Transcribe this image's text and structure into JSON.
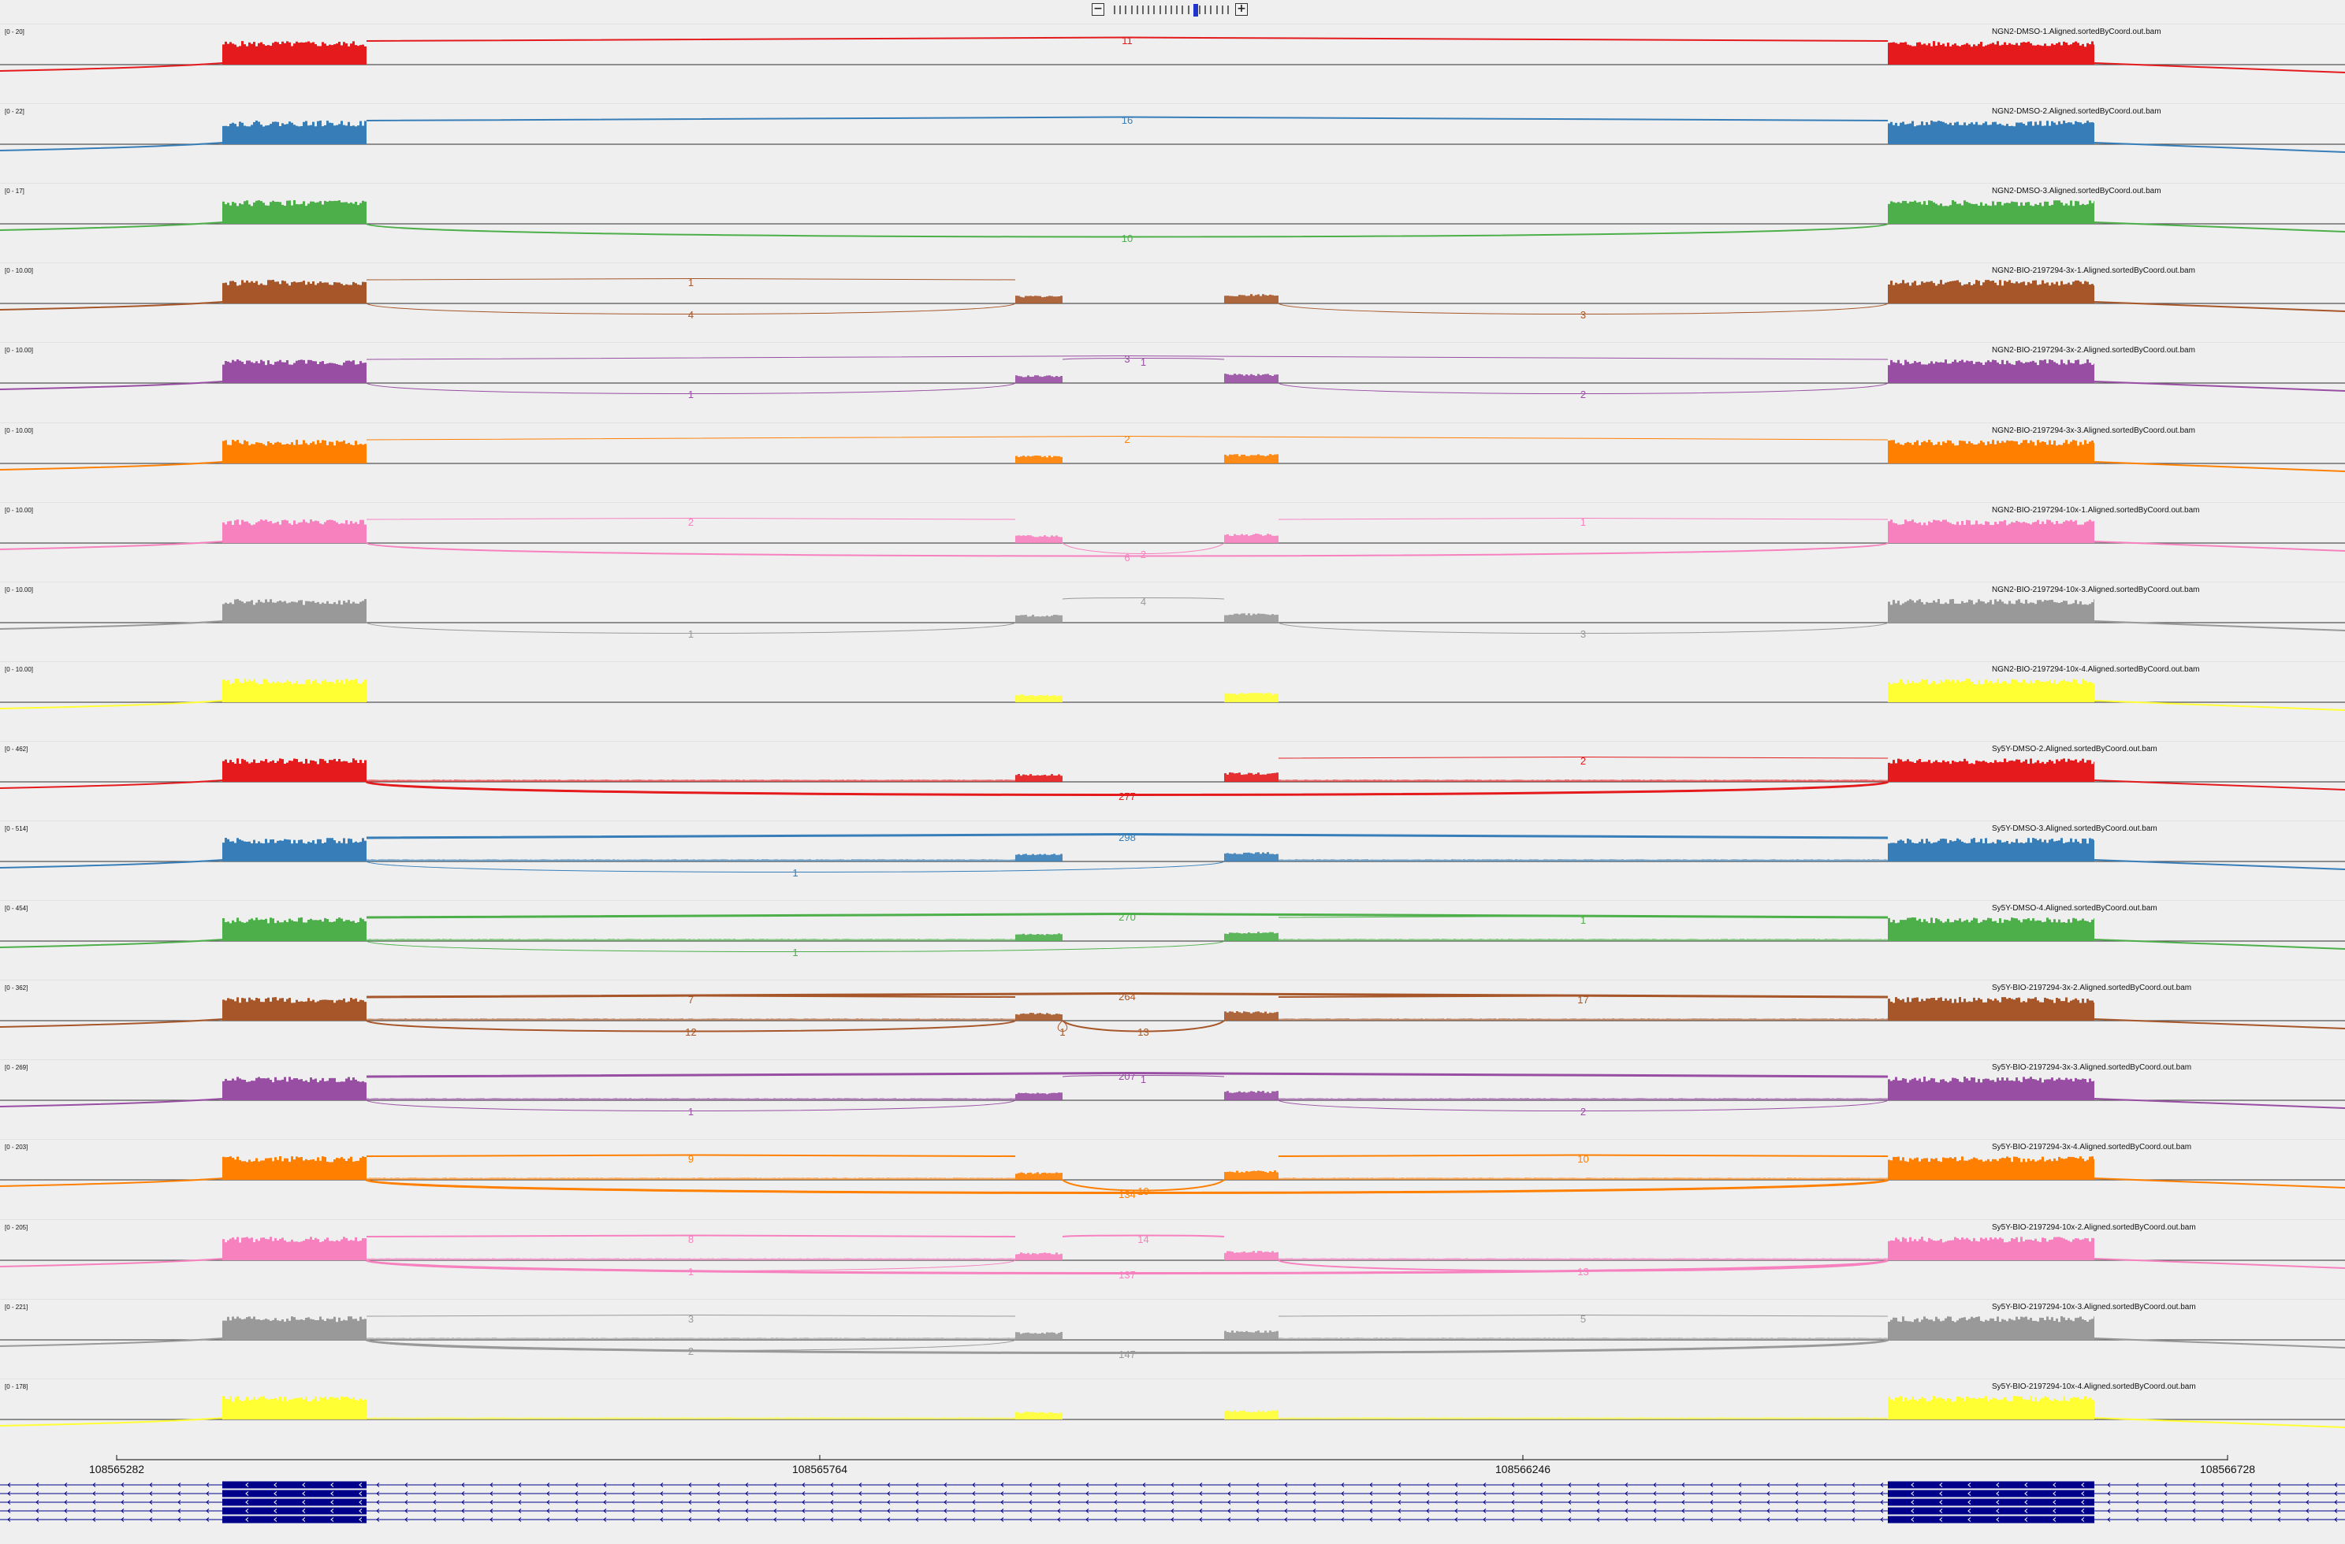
{
  "zoom": {
    "minus_label": "−",
    "plus_label": "+",
    "level": 14,
    "ticks": 21
  },
  "colors": {
    "red": "#e41a1c",
    "blue": "#377eb8",
    "green": "#4daf4a",
    "brown": "#a65628",
    "purple": "#984ea3",
    "orange": "#ff7f00",
    "pink": "#f781bf",
    "gray": "#999999",
    "yellow": "#ffff33",
    "gene": "#00008b"
  },
  "tracks": [
    {
      "name": "NGN2-DMSO-1.Aligned.sortedByCoord.out.bam",
      "range": "[0 - 20]",
      "color": "#e41a1c",
      "junctions": [
        {
          "from": "e1",
          "to": "e4",
          "label": "11",
          "side": "above"
        }
      ]
    },
    {
      "name": "NGN2-DMSO-2.Aligned.sortedByCoord.out.bam",
      "range": "[0 - 22]",
      "color": "#377eb8",
      "junctions": [
        {
          "from": "e1",
          "to": "e4",
          "label": "16",
          "side": "above"
        }
      ]
    },
    {
      "name": "NGN2-DMSO-3.Aligned.sortedByCoord.out.bam",
      "range": "[0 - 17]",
      "color": "#4daf4a",
      "junctions": [
        {
          "from": "e1",
          "to": "e4",
          "label": "10",
          "side": "below"
        }
      ]
    },
    {
      "name": "NGN2-BIO-2197294-3x-1.Aligned.sortedByCoord.out.bam",
      "range": "[0 - 10.00]",
      "color": "#a65628",
      "junctions": [
        {
          "from": "e1",
          "to": "e2",
          "label": "1",
          "side": "above"
        },
        {
          "from": "e1",
          "to": "e2",
          "label": "4",
          "side": "below"
        },
        {
          "from": "e3",
          "to": "e4",
          "label": "3",
          "side": "below"
        }
      ]
    },
    {
      "name": "NGN2-BIO-2197294-3x-2.Aligned.sortedByCoord.out.bam",
      "range": "[0 - 10.00]",
      "color": "#984ea3",
      "junctions": [
        {
          "from": "e1",
          "to": "e4",
          "label": "3",
          "side": "above"
        },
        {
          "from": "e2",
          "to": "e3",
          "label": "1",
          "side": "above"
        },
        {
          "from": "e1",
          "to": "e2",
          "label": "1",
          "side": "below"
        },
        {
          "from": "e3",
          "to": "e4",
          "label": "2",
          "side": "below"
        }
      ]
    },
    {
      "name": "NGN2-BIO-2197294-3x-3.Aligned.sortedByCoord.out.bam",
      "range": "[0 - 10.00]",
      "color": "#ff7f00",
      "junctions": [
        {
          "from": "e1",
          "to": "e4",
          "label": "2",
          "side": "above"
        }
      ]
    },
    {
      "name": "NGN2-BIO-2197294-10x-1.Aligned.sortedByCoord.out.bam",
      "range": "[0 - 10.00]",
      "color": "#f781bf",
      "junctions": [
        {
          "from": "e1",
          "to": "e2",
          "label": "2",
          "side": "above"
        },
        {
          "from": "e3",
          "to": "e4",
          "label": "1",
          "side": "above"
        },
        {
          "from": "e1",
          "to": "e4",
          "label": "6",
          "side": "below"
        },
        {
          "from": "e2",
          "to": "e3",
          "label": "2",
          "side": "below"
        }
      ]
    },
    {
      "name": "NGN2-BIO-2197294-10x-3.Aligned.sortedByCoord.out.bam",
      "range": "[0 - 10.00]",
      "color": "#999999",
      "junctions": [
        {
          "from": "e2",
          "to": "e3",
          "label": "4",
          "side": "above"
        },
        {
          "from": "e1",
          "to": "e2",
          "label": "1",
          "side": "below"
        },
        {
          "from": "e3",
          "to": "e4",
          "label": "3",
          "side": "below"
        }
      ]
    },
    {
      "name": "NGN2-BIO-2197294-10x-4.Aligned.sortedByCoord.out.bam",
      "range": "[0 - 10.00]",
      "color": "#ffff33",
      "junctions": []
    },
    {
      "name": "Sy5Y-DMSO-2.Aligned.sortedByCoord.out.bam",
      "range": "[0 - 462]",
      "color": "#e41a1c",
      "junctions": [
        {
          "from": "e3",
          "to": "e4",
          "label": "2",
          "side": "above"
        },
        {
          "from": "e1",
          "to": "e4",
          "label": "277",
          "side": "below"
        }
      ]
    },
    {
      "name": "Sy5Y-DMSO-3.Aligned.sortedByCoord.out.bam",
      "range": "[0 - 514]",
      "color": "#377eb8",
      "junctions": [
        {
          "from": "e1",
          "to": "e4",
          "label": "298",
          "side": "above"
        },
        {
          "from": "e1",
          "to": "e3",
          "label": "1",
          "side": "below"
        }
      ]
    },
    {
      "name": "Sy5Y-DMSO-4.Aligned.sortedByCoord.out.bam",
      "range": "[0 - 454]",
      "color": "#4daf4a",
      "junctions": [
        {
          "from": "e1",
          "to": "e4",
          "label": "270",
          "side": "above"
        },
        {
          "from": "e3",
          "to": "e4",
          "label": "1",
          "side": "above"
        },
        {
          "from": "e1",
          "to": "e3",
          "label": "1",
          "side": "below"
        }
      ]
    },
    {
      "name": "Sy5Y-BIO-2197294-3x-2.Aligned.sortedByCoord.out.bam",
      "range": "[0 - 362]",
      "color": "#a65628",
      "junctions": [
        {
          "from": "e1",
          "to": "e4",
          "label": "264",
          "side": "above"
        },
        {
          "from": "e1",
          "to": "e2",
          "label": "7",
          "side": "above"
        },
        {
          "from": "e3",
          "to": "e4",
          "label": "17",
          "side": "above"
        },
        {
          "from": "e1",
          "to": "e2",
          "label": "12",
          "side": "below"
        },
        {
          "from": "e2",
          "to": "e3",
          "label": "13",
          "side": "below"
        },
        {
          "from": "e2",
          "to": "e2b",
          "label": "1",
          "side": "below"
        }
      ]
    },
    {
      "name": "Sy5Y-BIO-2197294-3x-3.Aligned.sortedByCoord.out.bam",
      "range": "[0 - 269]",
      "color": "#984ea3",
      "junctions": [
        {
          "from": "e1",
          "to": "e4",
          "label": "207",
          "side": "above"
        },
        {
          "from": "e2",
          "to": "e3",
          "label": "1",
          "side": "above"
        },
        {
          "from": "e1",
          "to": "e2",
          "label": "1",
          "side": "below"
        },
        {
          "from": "e3",
          "to": "e4",
          "label": "2",
          "side": "below"
        }
      ]
    },
    {
      "name": "Sy5Y-BIO-2197294-3x-4.Aligned.sortedByCoord.out.bam",
      "range": "[0 - 203]",
      "color": "#ff7f00",
      "junctions": [
        {
          "from": "e1",
          "to": "e2",
          "label": "9",
          "side": "above"
        },
        {
          "from": "e3",
          "to": "e4",
          "label": "10",
          "side": "above"
        },
        {
          "from": "e1",
          "to": "e4",
          "label": "134",
          "side": "below"
        },
        {
          "from": "e2",
          "to": "e3",
          "label": "10",
          "side": "below"
        }
      ]
    },
    {
      "name": "Sy5Y-BIO-2197294-10x-2.Aligned.sortedByCoord.out.bam",
      "range": "[0 - 205]",
      "color": "#f781bf",
      "junctions": [
        {
          "from": "e1",
          "to": "e2",
          "label": "8",
          "side": "above"
        },
        {
          "from": "e2",
          "to": "e3",
          "label": "14",
          "side": "above"
        },
        {
          "from": "e1",
          "to": "e2",
          "label": "1",
          "side": "below"
        },
        {
          "from": "e1",
          "to": "e4",
          "label": "137",
          "side": "below"
        },
        {
          "from": "e3",
          "to": "e4",
          "label": "13",
          "side": "below"
        }
      ]
    },
    {
      "name": "Sy5Y-BIO-2197294-10x-3.Aligned.sortedByCoord.out.bam",
      "range": "[0 - 221]",
      "color": "#999999",
      "junctions": [
        {
          "from": "e1",
          "to": "e2",
          "label": "3",
          "side": "above"
        },
        {
          "from": "e3",
          "to": "e4",
          "label": "5",
          "side": "above"
        },
        {
          "from": "e1",
          "to": "e2",
          "label": "2",
          "side": "below"
        },
        {
          "from": "e1",
          "to": "e4",
          "label": "147",
          "side": "below"
        }
      ]
    },
    {
      "name": "Sy5Y-BIO-2197294-10x-4.Aligned.sortedByCoord.out.bam",
      "range": "[0 - 178]",
      "color": "#ffff33",
      "junctions": []
    }
  ],
  "ruler": {
    "labels": [
      "108565282",
      "108565764",
      "108566246",
      "108566728"
    ]
  },
  "gene_model": {
    "rows": 5
  }
}
